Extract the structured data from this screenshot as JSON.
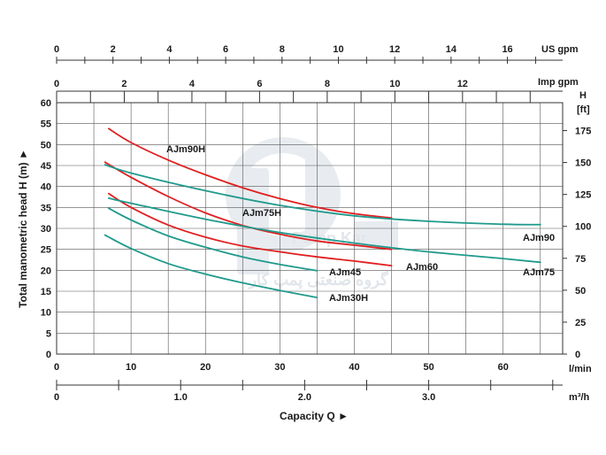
{
  "chart_data": {
    "type": "line",
    "axes": {
      "x_main": {
        "unit_label": "l/min",
        "min": 0,
        "max": 68,
        "ticks": [
          0,
          10,
          20,
          30,
          40,
          50,
          60
        ]
      },
      "x_m3h": {
        "unit_label": "m³/h",
        "min": 0,
        "max": 4.08,
        "ticks": [
          0,
          1.0,
          2.0,
          3.0
        ],
        "tick_labels": [
          "0",
          "1.0",
          "2.0",
          "3.0"
        ]
      },
      "x_us_gpm": {
        "unit_label": "US gpm",
        "min": 0,
        "max": 17.96,
        "ticks": [
          0,
          2,
          4,
          6,
          8,
          10,
          12,
          14,
          16
        ]
      },
      "x_imp_gpm": {
        "unit_label": "Imp gpm",
        "min": 0,
        "max": 14.96,
        "ticks": [
          0,
          2,
          4,
          6,
          8,
          10,
          12
        ]
      },
      "y_left": {
        "label": "Total manometric head H (m) ►",
        "min": 0,
        "max": 60,
        "ticks": [
          0,
          5,
          10,
          15,
          20,
          25,
          30,
          35,
          40,
          45,
          50,
          55,
          60
        ]
      },
      "y_right": {
        "unit_label": "H",
        "unit_sub": "[ft]",
        "min": 0,
        "max": 196.85,
        "ticks": [
          0,
          25,
          50,
          75,
          100,
          125,
          150,
          175
        ]
      },
      "xlabel": "Capacity Q ►"
    },
    "grid": true,
    "series": [
      {
        "name": "AJm90H",
        "color": "#e02020",
        "points": [
          [
            7,
            53.8
          ],
          [
            10,
            50.5
          ],
          [
            15,
            46.3
          ],
          [
            20,
            42.8
          ],
          [
            25,
            39.7
          ],
          [
            30,
            37.1
          ],
          [
            35,
            35.0
          ],
          [
            40,
            33.5
          ],
          [
            45,
            32.5
          ]
        ]
      },
      {
        "name": "AJm75H",
        "color": "#e02020",
        "points": [
          [
            6.5,
            45.8
          ],
          [
            10,
            42.2
          ],
          [
            15,
            37.6
          ],
          [
            20,
            33.7
          ],
          [
            25,
            30.7
          ],
          [
            30,
            28.6
          ],
          [
            35,
            27.0
          ],
          [
            40,
            26.0
          ],
          [
            45,
            25.0
          ]
        ]
      },
      {
        "name": "AJm60",
        "color": "#e02020",
        "points": [
          [
            7,
            38.3
          ],
          [
            10,
            35.0
          ],
          [
            15,
            30.8
          ],
          [
            20,
            27.9
          ],
          [
            25,
            25.8
          ],
          [
            30,
            24.4
          ],
          [
            35,
            23.2
          ],
          [
            40,
            22.2
          ],
          [
            45,
            21.1
          ]
        ]
      },
      {
        "name": "AJm90",
        "color": "#1f9a8c",
        "points": [
          [
            6.5,
            45.2
          ],
          [
            10,
            43.2
          ],
          [
            20,
            39.0
          ],
          [
            30,
            35.5
          ],
          [
            40,
            33.0
          ],
          [
            50,
            31.7
          ],
          [
            60,
            31.0
          ],
          [
            65,
            30.9
          ]
        ]
      },
      {
        "name": "AJm75",
        "color": "#1f9a8c",
        "points": [
          [
            7,
            37.2
          ],
          [
            10,
            36.0
          ],
          [
            20,
            32.2
          ],
          [
            30,
            29.0
          ],
          [
            40,
            26.5
          ],
          [
            50,
            24.4
          ],
          [
            60,
            22.8
          ],
          [
            65,
            21.9
          ]
        ]
      },
      {
        "name": "AJm45",
        "color": "#1f9a8c",
        "points": [
          [
            7,
            34.8
          ],
          [
            10,
            32.0
          ],
          [
            15,
            28.2
          ],
          [
            20,
            25.5
          ],
          [
            25,
            23.2
          ],
          [
            30,
            21.4
          ],
          [
            35,
            19.9
          ]
        ]
      },
      {
        "name": "AJm30H",
        "color": "#1f9a8c",
        "points": [
          [
            6.5,
            28.4
          ],
          [
            10,
            25.2
          ],
          [
            15,
            21.6
          ],
          [
            20,
            19.1
          ],
          [
            25,
            17.0
          ],
          [
            30,
            15.2
          ],
          [
            35,
            13.5
          ]
        ]
      }
    ]
  },
  "watermark": {
    "brand_text": "Pump Kar",
    "persian_text": "گروه صنعتی پمپ کار"
  }
}
